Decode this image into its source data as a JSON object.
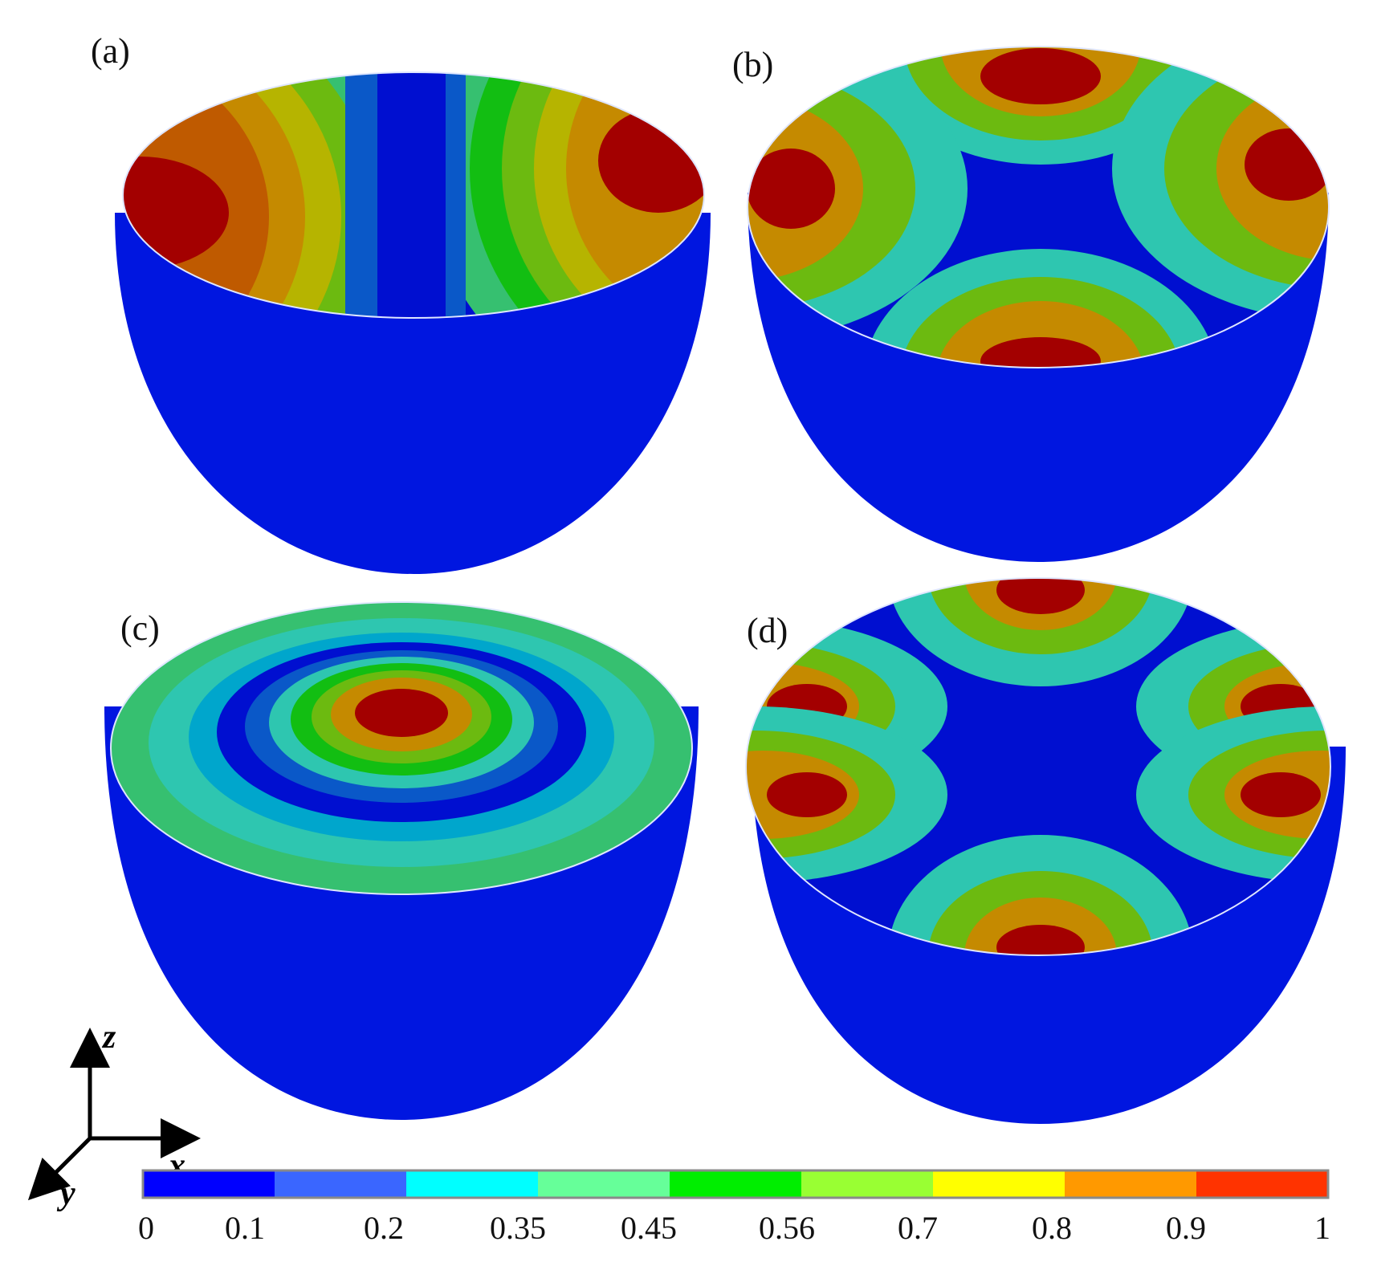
{
  "panels": [
    {
      "id": "a",
      "label": "(a)"
    },
    {
      "id": "b",
      "label": "(b)"
    },
    {
      "id": "c",
      "label": "(c)"
    },
    {
      "id": "d",
      "label": "(d)"
    }
  ],
  "axes": {
    "z": "z",
    "x": "x",
    "y": "y"
  },
  "colorbar": {
    "ticks": [
      "0",
      "0.1",
      "0.2",
      "0.35",
      "0.45",
      "0.56",
      "0.7",
      "0.8",
      "0.9",
      "1"
    ],
    "colors": [
      "#0000ff",
      "#3a66ff",
      "#00ffff",
      "#66ff99",
      "#00ee00",
      "#99ff33",
      "#ffff00",
      "#ff9900",
      "#ff3300"
    ]
  },
  "colors": {
    "shell": "#0016e0",
    "contour": [
      "#000fd0",
      "#0a58c8",
      "#00a6cc",
      "#2ec6b0",
      "#36c070",
      "#12be12",
      "#6cba10",
      "#b6b400",
      "#c58a00",
      "#bf5a00",
      "#a30000"
    ]
  }
}
